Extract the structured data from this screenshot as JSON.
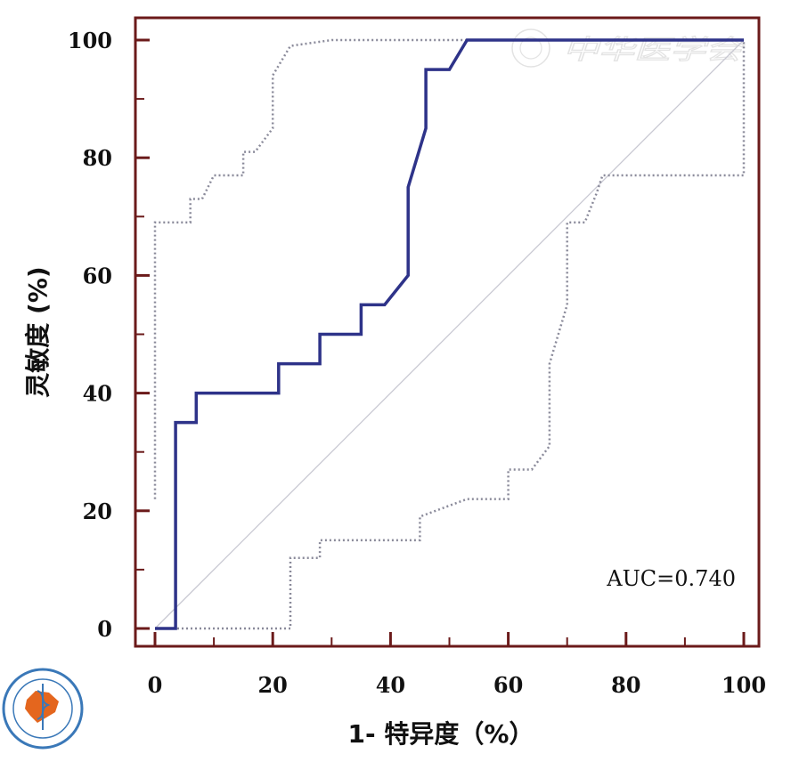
{
  "chart_data": {
    "type": "line",
    "title": "",
    "xlabel": "1- 特异度（%）",
    "ylabel": "灵敏度 (%)",
    "xlim": [
      0,
      100
    ],
    "ylim": [
      0,
      100
    ],
    "x_ticks": [
      0,
      20,
      40,
      60,
      80,
      100
    ],
    "y_ticks": [
      0,
      20,
      40,
      60,
      80,
      100
    ],
    "annotation": "AUC=0.740",
    "watermark": "中华医学会",
    "grid": false,
    "legend": "none",
    "colors": {
      "roc": "#2e3389",
      "ci": "#8a8a9a",
      "diagonal": "#c8c8d2",
      "frame": "#6b1a1a",
      "ticks": "#6b1a1a"
    },
    "series": [
      {
        "style": "solid",
        "points": [
          [
            0,
            0
          ],
          [
            3.5,
            0
          ],
          [
            3.5,
            35
          ],
          [
            7,
            35
          ],
          [
            7,
            40
          ],
          [
            21,
            40
          ],
          [
            21,
            45
          ],
          [
            25,
            45
          ],
          [
            28,
            45
          ],
          [
            28,
            50
          ],
          [
            35,
            50
          ],
          [
            35,
            55
          ],
          [
            39,
            55
          ],
          [
            43,
            60
          ],
          [
            43,
            75
          ],
          [
            46,
            85
          ],
          [
            46,
            95
          ],
          [
            50,
            95
          ],
          [
            53,
            100
          ],
          [
            100,
            100
          ]
        ]
      },
      {
        "style": "dotted",
        "points": [
          [
            0,
            22
          ],
          [
            0,
            69
          ],
          [
            6,
            69
          ],
          [
            6,
            73
          ],
          [
            8,
            73
          ],
          [
            10,
            77
          ],
          [
            15,
            77
          ],
          [
            15,
            81
          ],
          [
            17,
            81
          ],
          [
            20,
            85
          ],
          [
            20,
            94
          ],
          [
            23,
            99
          ],
          [
            30,
            100
          ],
          [
            100,
            100
          ]
        ]
      },
      {
        "style": "dotted",
        "points": [
          [
            0,
            0
          ],
          [
            23,
            0
          ],
          [
            23,
            12
          ],
          [
            28,
            12
          ],
          [
            28,
            15
          ],
          [
            45,
            15
          ],
          [
            45,
            19
          ],
          [
            53,
            22
          ],
          [
            60,
            22
          ],
          [
            60,
            27
          ],
          [
            64,
            27
          ],
          [
            67,
            31
          ],
          [
            67,
            45
          ],
          [
            70,
            55
          ],
          [
            70,
            69
          ],
          [
            73,
            69
          ],
          [
            75,
            74
          ],
          [
            76,
            77
          ],
          [
            100,
            77
          ],
          [
            100,
            100
          ]
        ]
      },
      {
        "style": "diagonal",
        "points": [
          [
            0,
            0
          ],
          [
            100,
            100
          ]
        ]
      }
    ]
  }
}
